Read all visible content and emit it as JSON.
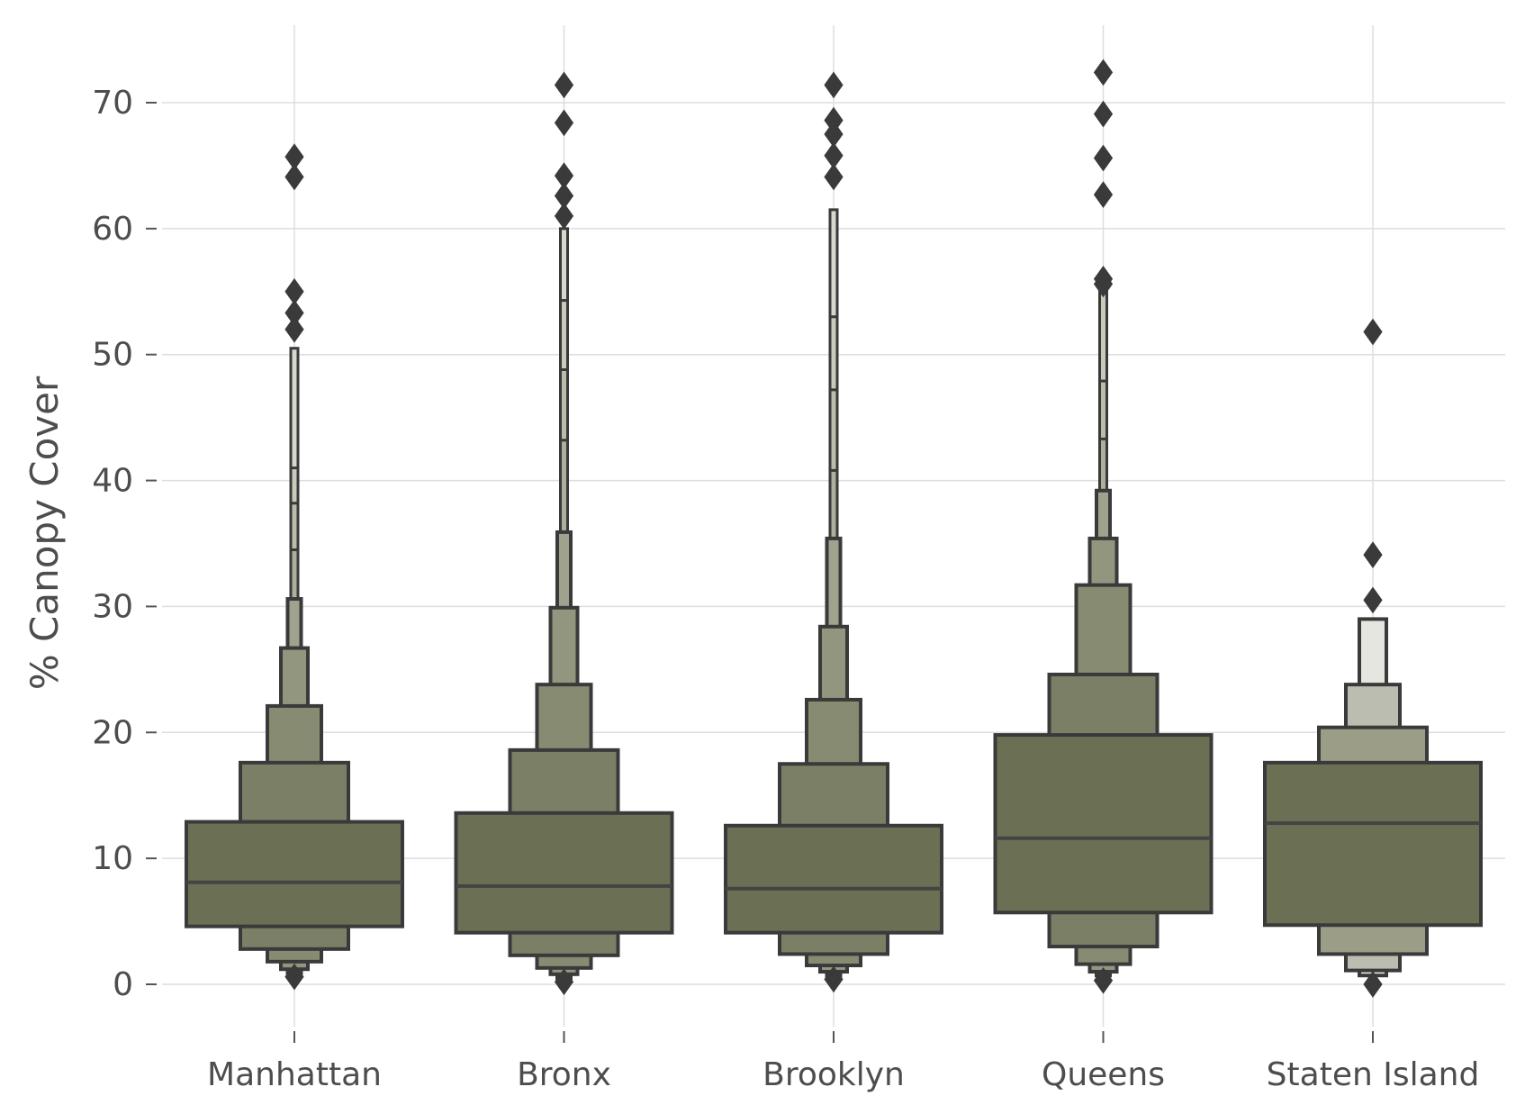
{
  "chart_data": {
    "type": "boxen",
    "ylabel": "% Canopy Cover",
    "xlabel": "",
    "ylim": [
      -3,
      76
    ],
    "yticks": [
      0,
      10,
      20,
      30,
      40,
      50,
      60,
      70
    ],
    "grid": true,
    "colors": {
      "grid": "#dddddd",
      "outline": "#3a3a3a",
      "text": "#4d4d4d",
      "box_dark": "#6b7055"
    },
    "categories": [
      "Manhattan",
      "Bronx",
      "Brooklyn",
      "Queens",
      "Staten Island"
    ],
    "series": [
      {
        "category": "Manhattan",
        "median": 8.1,
        "boxes": [
          {
            "lo": 4.6,
            "hi": 12.9,
            "color": "#6b7055"
          },
          {
            "lo": 2.8,
            "hi": 17.6,
            "color": "#7b7f65"
          },
          {
            "lo": 1.8,
            "hi": 22.1,
            "color": "#878b72"
          },
          {
            "lo": 1.2,
            "hi": 26.7,
            "color": "#93967f"
          },
          {
            "lo": 0.9,
            "hi": 30.6,
            "color": "#9fa28d"
          },
          {
            "lo": 0.7,
            "hi": 34.5,
            "color": "#adb09c"
          },
          {
            "lo": 0.6,
            "hi": 38.2,
            "color": "#bbbdab"
          },
          {
            "lo": 0.5,
            "hi": 41.0,
            "color": "#c9cabc"
          },
          {
            "lo": 0.4,
            "hi": 50.5,
            "color": "#d7d8cd"
          }
        ],
        "outliers": [
          65.7,
          64.1,
          55.0,
          53.3,
          52.0,
          0.6
        ]
      },
      {
        "category": "Bronx",
        "median": 7.8,
        "boxes": [
          {
            "lo": 4.1,
            "hi": 13.6,
            "color": "#6b7055"
          },
          {
            "lo": 2.3,
            "hi": 18.6,
            "color": "#7b7f65"
          },
          {
            "lo": 1.3,
            "hi": 23.8,
            "color": "#878b72"
          },
          {
            "lo": 0.8,
            "hi": 29.9,
            "color": "#93967f"
          },
          {
            "lo": 0.5,
            "hi": 35.9,
            "color": "#9fa28d"
          },
          {
            "lo": 0.4,
            "hi": 43.2,
            "color": "#adb09c"
          },
          {
            "lo": 0.3,
            "hi": 48.8,
            "color": "#bbbdab"
          },
          {
            "lo": 0.2,
            "hi": 54.3,
            "color": "#c9cabc"
          },
          {
            "lo": 0.2,
            "hi": 60.0,
            "color": "#d7d8cd"
          }
        ],
        "outliers": [
          71.4,
          68.4,
          64.2,
          62.6,
          61.0,
          0.2
        ]
      },
      {
        "category": "Brooklyn",
        "median": 7.6,
        "boxes": [
          {
            "lo": 4.1,
            "hi": 12.6,
            "color": "#6b7055"
          },
          {
            "lo": 2.4,
            "hi": 17.5,
            "color": "#7b7f65"
          },
          {
            "lo": 1.5,
            "hi": 22.6,
            "color": "#878b72"
          },
          {
            "lo": 1.0,
            "hi": 28.4,
            "color": "#93967f"
          },
          {
            "lo": 0.7,
            "hi": 35.4,
            "color": "#9fa28d"
          },
          {
            "lo": 0.5,
            "hi": 40.8,
            "color": "#adb09c"
          },
          {
            "lo": 0.4,
            "hi": 47.2,
            "color": "#bbbdab"
          },
          {
            "lo": 0.3,
            "hi": 53.0,
            "color": "#c9cabc"
          },
          {
            "lo": 0.2,
            "hi": 61.5,
            "color": "#d7d8cd"
          }
        ],
        "outliers": [
          71.4,
          68.6,
          67.5,
          65.8,
          64.1,
          0.4
        ]
      },
      {
        "category": "Queens",
        "median": 11.6,
        "boxes": [
          {
            "lo": 5.7,
            "hi": 19.8,
            "color": "#6b7055"
          },
          {
            "lo": 3.0,
            "hi": 24.6,
            "color": "#7b7f65"
          },
          {
            "lo": 1.6,
            "hi": 31.7,
            "color": "#878b72"
          },
          {
            "lo": 1.0,
            "hi": 35.4,
            "color": "#93967f"
          },
          {
            "lo": 0.7,
            "hi": 39.2,
            "color": "#9fa28d"
          },
          {
            "lo": 0.5,
            "hi": 43.3,
            "color": "#adb09c"
          },
          {
            "lo": 0.4,
            "hi": 47.9,
            "color": "#bbbdab"
          },
          {
            "lo": 0.3,
            "hi": 55.0,
            "color": "#c9cabc"
          }
        ],
        "outliers": [
          72.4,
          69.1,
          65.6,
          62.7,
          56.0,
          55.6,
          0.3
        ]
      },
      {
        "category": "Staten Island",
        "median": 12.8,
        "boxes": [
          {
            "lo": 4.7,
            "hi": 17.6,
            "color": "#6b7055"
          },
          {
            "lo": 2.4,
            "hi": 20.4,
            "color": "#9c9d87"
          },
          {
            "lo": 1.1,
            "hi": 23.8,
            "color": "#bbbdb1"
          },
          {
            "lo": 0.7,
            "hi": 29.0,
            "color": "#e6e6e0"
          }
        ],
        "outliers": [
          51.8,
          34.1,
          30.5,
          0.0
        ]
      }
    ]
  }
}
